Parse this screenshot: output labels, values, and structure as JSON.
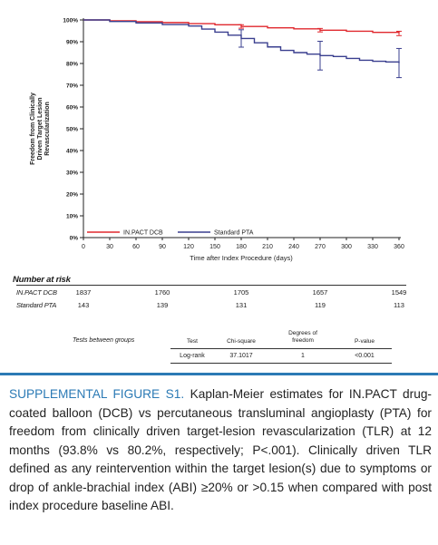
{
  "chart_data": {
    "type": "line",
    "ylabel": "Freedom from Clinically Driven Target Lesion Revascularization",
    "xlabel": "Time after Index Procedure (days)",
    "ylim": [
      0,
      100
    ],
    "xlim": [
      0,
      360
    ],
    "yticks": [
      "0%",
      "10%",
      "20%",
      "30%",
      "40%",
      "50%",
      "60%",
      "70%",
      "80%",
      "90%",
      "100%"
    ],
    "xticks": [
      0,
      30,
      60,
      90,
      120,
      150,
      180,
      210,
      240,
      270,
      300,
      330,
      360
    ],
    "grid": false,
    "legend_position": "bottom-left",
    "series": [
      {
        "name": "IN.PACT DCB",
        "color": "#e0282e",
        "x": [
          0,
          30,
          60,
          90,
          120,
          150,
          180,
          210,
          240,
          270,
          300,
          330,
          360
        ],
        "y": [
          100,
          99.6,
          99.2,
          98.8,
          98.3,
          97.8,
          97.0,
          96.4,
          95.9,
          95.3,
          94.8,
          94.3,
          93.8
        ],
        "error_bars": [
          {
            "x": 180,
            "low": 96.2,
            "high": 97.8
          },
          {
            "x": 270,
            "low": 94.5,
            "high": 96.1
          },
          {
            "x": 360,
            "low": 92.8,
            "high": 94.8
          }
        ]
      },
      {
        "name": "Standard PTA",
        "color": "#3a3f8f",
        "x": [
          0,
          30,
          60,
          90,
          120,
          135,
          150,
          165,
          180,
          195,
          210,
          225,
          240,
          255,
          270,
          285,
          300,
          315,
          330,
          345,
          360
        ],
        "y": [
          100,
          99.3,
          98.6,
          97.9,
          97.2,
          95.8,
          94.4,
          93.0,
          91.5,
          89.5,
          87.6,
          86.0,
          85.0,
          84.3,
          83.6,
          83.2,
          82.3,
          81.5,
          81.0,
          80.7,
          80.2
        ],
        "error_bars": [
          {
            "x": 180,
            "low": 87.5,
            "high": 95.5
          },
          {
            "x": 270,
            "low": 77.0,
            "high": 90.2
          },
          {
            "x": 360,
            "low": 73.5,
            "high": 86.9
          }
        ]
      }
    ]
  },
  "risk_table": {
    "title": "Number at risk",
    "columns_x": [
      0,
      90,
      180,
      270,
      360
    ],
    "rows": [
      {
        "label": "IN.PACT DCB",
        "values": [
          "1837",
          "1760",
          "1705",
          "1657",
          "1549"
        ]
      },
      {
        "label": "Standard PTA",
        "values": [
          "143",
          "139",
          "131",
          "119",
          "113"
        ]
      }
    ]
  },
  "stats_table": {
    "group_label": "Tests between groups",
    "headers": [
      "Test",
      "Chi-square",
      "Degrees of freedom",
      "P-value"
    ],
    "row": [
      "Log-rank",
      "37.1017",
      "1",
      "<0.001"
    ]
  },
  "caption": {
    "lead": "SUPPLEMENTAL FIGURE S1.",
    "body": " Kaplan-Meier estimates for IN.PACT drug-coated balloon (DCB) vs percutaneous transluminal angioplasty (PTA) for freedom from clinically driven target-lesion revascularization (TLR) at 12 months (93.8% vs 80.2%, respectively; P<.001). Clinically driven TLR defined as any reintervention within the target lesion(s) due to symptoms or drop of ankle-brachial index (ABI) ≥20% or >0.15 when compared with post index procedure baseline ABI."
  },
  "colors": {
    "accent": "#2b7ab5",
    "dcb": "#e0282e",
    "pta": "#3a3f8f"
  }
}
